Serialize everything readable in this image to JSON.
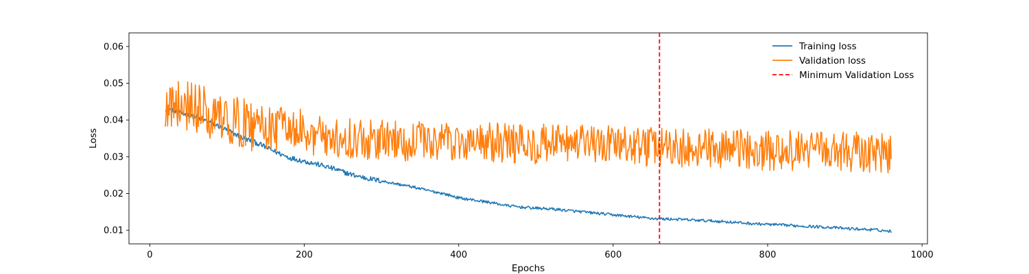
{
  "chart_data": {
    "type": "line",
    "xlabel": "Epochs",
    "ylabel": "Loss",
    "xlim": [
      -27,
      1007
    ],
    "ylim": [
      0.0063,
      0.0637
    ],
    "xticks": [
      0,
      200,
      400,
      600,
      800,
      1000
    ],
    "yticks": [
      0.01,
      0.02,
      0.03,
      0.04,
      0.05,
      0.06
    ],
    "xtick_labels": [
      "0",
      "200",
      "400",
      "600",
      "800",
      "1000"
    ],
    "ytick_labels": [
      "0.01",
      "0.02",
      "0.03",
      "0.04",
      "0.05",
      "0.06"
    ],
    "grid": false,
    "legend_position": "top-right",
    "x_start": 20,
    "x_end": 960,
    "series": [
      {
        "name": "Training loss",
        "color": "#1f77b4",
        "style": "solid",
        "points": [
          [
            20,
            0.0432
          ],
          [
            30,
            0.0428
          ],
          [
            40,
            0.0418
          ],
          [
            60,
            0.0408
          ],
          [
            80,
            0.0392
          ],
          [
            100,
            0.0372
          ],
          [
            120,
            0.0352
          ],
          [
            140,
            0.0336
          ],
          [
            160,
            0.0316
          ],
          [
            180,
            0.0298
          ],
          [
            200,
            0.0288
          ],
          [
            220,
            0.0278
          ],
          [
            240,
            0.0266
          ],
          [
            260,
            0.0252
          ],
          [
            280,
            0.0242
          ],
          [
            300,
            0.0234
          ],
          [
            320,
            0.0226
          ],
          [
            340,
            0.0218
          ],
          [
            360,
            0.0208
          ],
          [
            380,
            0.02
          ],
          [
            400,
            0.0188
          ],
          [
            420,
            0.0182
          ],
          [
            440,
            0.0176
          ],
          [
            460,
            0.0168
          ],
          [
            480,
            0.0163
          ],
          [
            500,
            0.016
          ],
          [
            520,
            0.0158
          ],
          [
            540,
            0.0154
          ],
          [
            560,
            0.015
          ],
          [
            580,
            0.0146
          ],
          [
            600,
            0.0142
          ],
          [
            620,
            0.0138
          ],
          [
            640,
            0.0134
          ],
          [
            660,
            0.0131
          ],
          [
            680,
            0.013
          ],
          [
            700,
            0.0128
          ],
          [
            720,
            0.0126
          ],
          [
            740,
            0.0124
          ],
          [
            760,
            0.0121
          ],
          [
            780,
            0.0118
          ],
          [
            800,
            0.0116
          ],
          [
            820,
            0.0114
          ],
          [
            840,
            0.0112
          ],
          [
            860,
            0.011
          ],
          [
            880,
            0.0108
          ],
          [
            900,
            0.0105
          ],
          [
            920,
            0.0103
          ],
          [
            940,
            0.0101
          ],
          [
            960,
            0.0097
          ]
        ],
        "noise": 0.0007
      },
      {
        "name": "Validation loss",
        "color": "#ff7f0e",
        "style": "solid",
        "points": [
          [
            20,
            0.045
          ],
          [
            60,
            0.043
          ],
          [
            100,
            0.04
          ],
          [
            140,
            0.038
          ],
          [
            200,
            0.036
          ],
          [
            260,
            0.035
          ],
          [
            300,
            0.0345
          ],
          [
            400,
            0.034
          ],
          [
            500,
            0.0335
          ],
          [
            600,
            0.033
          ],
          [
            660,
            0.0325
          ],
          [
            700,
            0.0322
          ],
          [
            800,
            0.0318
          ],
          [
            900,
            0.0315
          ],
          [
            960,
            0.031
          ]
        ],
        "noise": 0.0055,
        "max": 0.061,
        "min": 0.0235
      }
    ],
    "vlines": [
      {
        "name": "Minimum Validation Loss",
        "x": 660,
        "color": "#ff0000",
        "style": "dashed"
      }
    ]
  }
}
